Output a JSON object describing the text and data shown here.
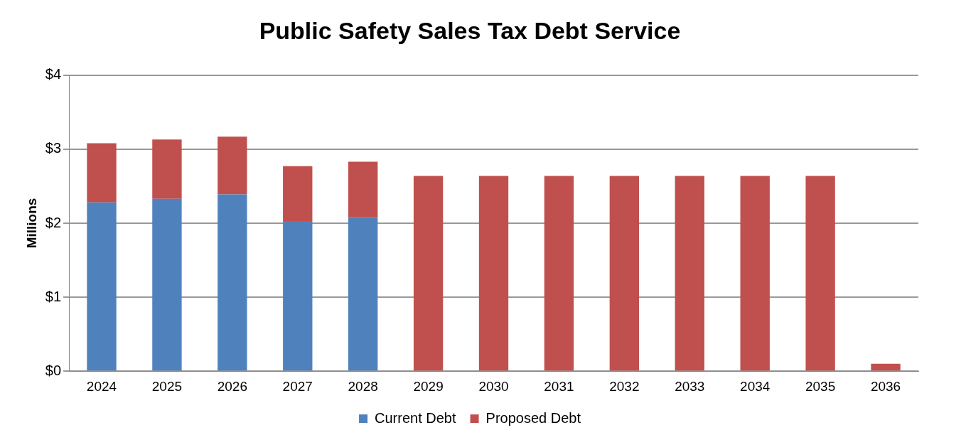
{
  "chart_data": {
    "type": "bar",
    "title": "Public Safety Sales Tax Debt Service",
    "ylabel": "Millions",
    "categories": [
      "2024",
      "2025",
      "2026",
      "2027",
      "2028",
      "2029",
      "2030",
      "2031",
      "2032",
      "2033",
      "2034",
      "2035",
      "2036"
    ],
    "series": [
      {
        "name": "Current Debt",
        "color": "#4f81bd",
        "values": [
          2.28,
          2.33,
          2.39,
          2.03,
          2.08,
          0,
          0,
          0,
          0,
          0,
          0,
          0,
          0
        ]
      },
      {
        "name": "Proposed Debt",
        "color": "#c0504d",
        "values": [
          0.8,
          0.8,
          0.78,
          0.74,
          0.75,
          2.64,
          2.64,
          2.64,
          2.64,
          2.64,
          2.64,
          2.64,
          0.1
        ]
      }
    ],
    "stacked": true,
    "ylim": [
      0,
      4
    ],
    "yticks": [
      {
        "value": 0,
        "label": "$0"
      },
      {
        "value": 1,
        "label": "$1"
      },
      {
        "value": 2,
        "label": "$2"
      },
      {
        "value": 3,
        "label": "$3"
      },
      {
        "value": 4,
        "label": "$4"
      }
    ],
    "grid": "y",
    "legend": "bottom"
  }
}
